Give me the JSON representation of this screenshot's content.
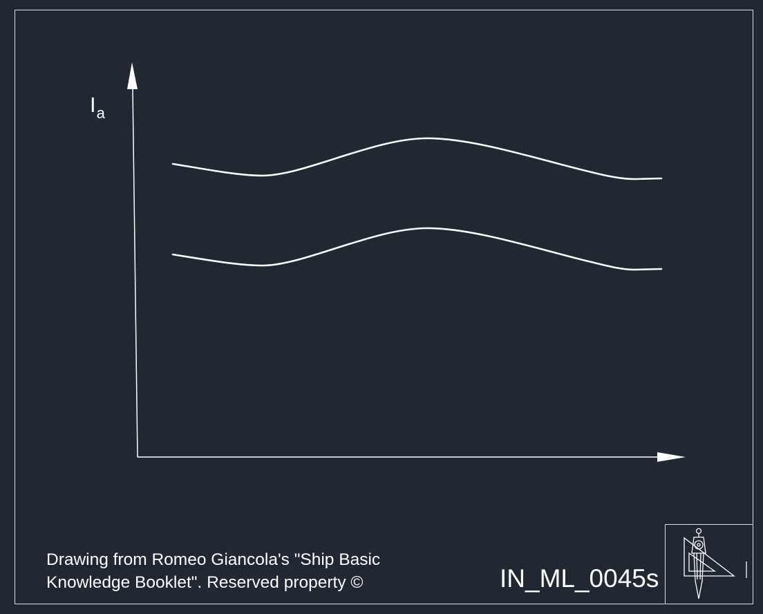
{
  "diagram": {
    "y_axis_symbol": "I",
    "y_axis_subscript": "a",
    "curves": [
      {
        "id": "upper-curve"
      },
      {
        "id": "lower-curve"
      }
    ]
  },
  "footer": {
    "credit_line_1": "Drawing from Romeo Giancola's \"Ship Basic",
    "credit_line_2": "Knowledge Booklet\". Reserved property ©",
    "drawing_code": "IN_ML_0045s",
    "logo_icon": "compass-and-set-square-icon"
  },
  "colors": {
    "background": "#222831",
    "lines": "#ffffff",
    "frame": "#d9dde2"
  }
}
